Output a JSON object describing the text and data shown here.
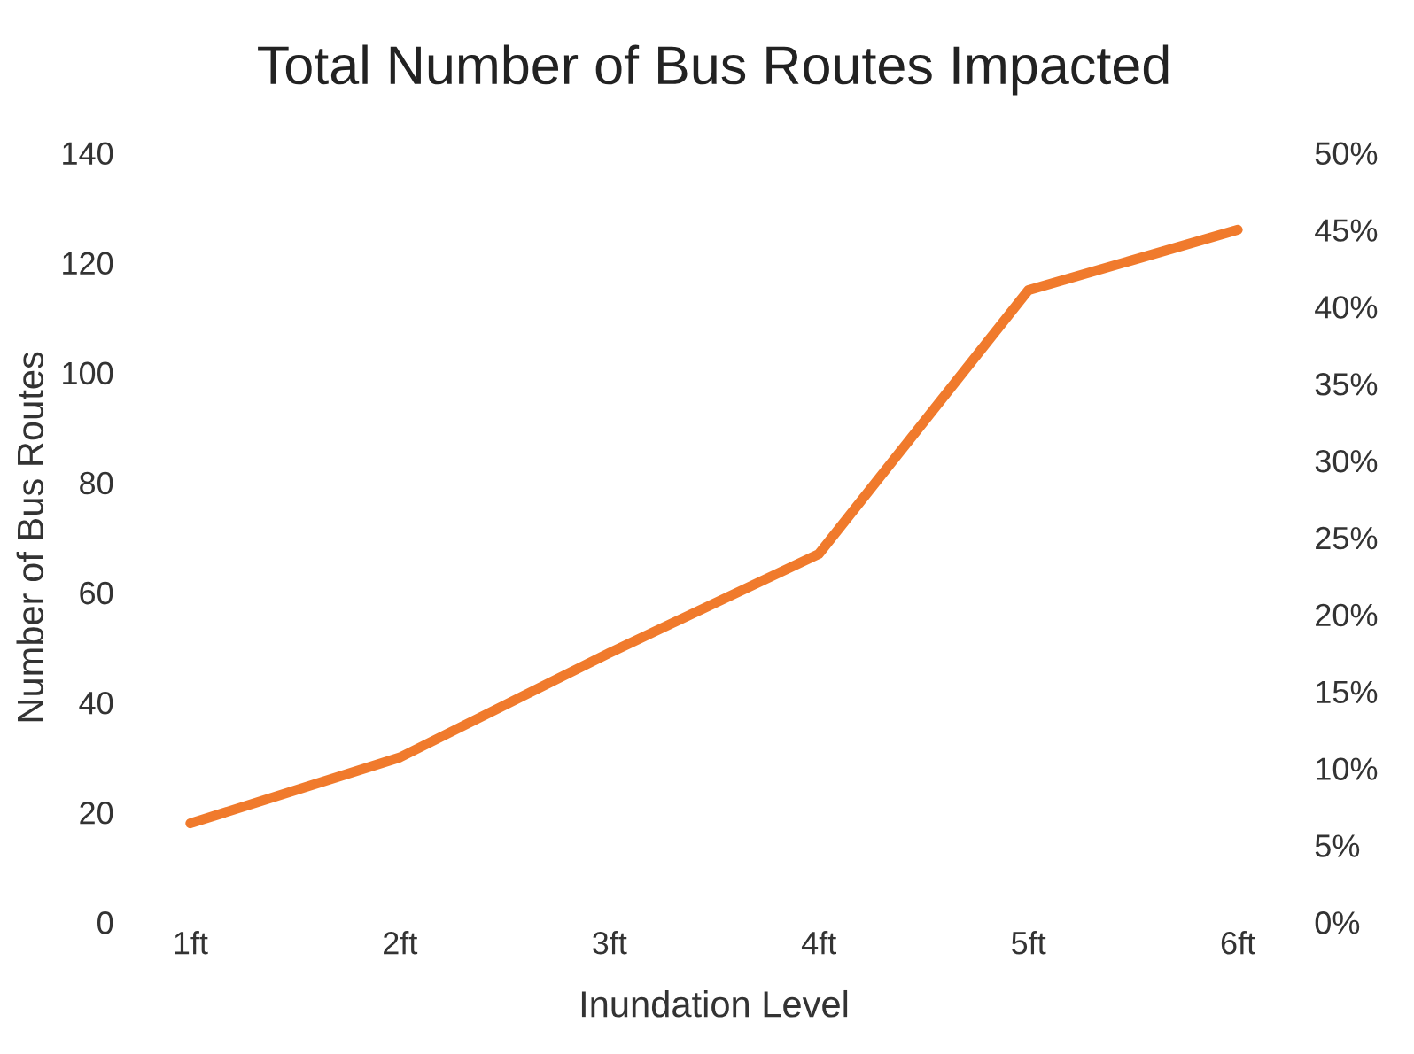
{
  "chart_data": {
    "type": "line",
    "title": "Total Number of Bus Routes Impacted",
    "xlabel": "Inundation Level",
    "ylabel": "Number of Bus Routes",
    "categories": [
      "1ft",
      "2ft",
      "3ft",
      "4ft",
      "5ft",
      "6ft"
    ],
    "series": [
      {
        "color": "#f07a2c",
        "values": [
          18,
          30,
          49,
          67,
          115,
          126
        ]
      }
    ],
    "ylim": [
      0,
      140
    ],
    "yticks": [
      0,
      20,
      40,
      60,
      80,
      100,
      120,
      140
    ],
    "y2lim": [
      0,
      50
    ],
    "y2ticks": [
      {
        "value": 0,
        "label": "0%"
      },
      {
        "value": 5,
        "label": "5%"
      },
      {
        "value": 10,
        "label": "10%"
      },
      {
        "value": 15,
        "label": "15%"
      },
      {
        "value": 20,
        "label": "20%"
      },
      {
        "value": 25,
        "label": "25%"
      },
      {
        "value": 30,
        "label": "30%"
      },
      {
        "value": 35,
        "label": "35%"
      },
      {
        "value": 40,
        "label": "40%"
      },
      {
        "value": 45,
        "label": "45%"
      },
      {
        "value": 50,
        "label": "50%"
      }
    ],
    "grid": false,
    "legend": false,
    "marker": "none",
    "line_style": "solid"
  }
}
